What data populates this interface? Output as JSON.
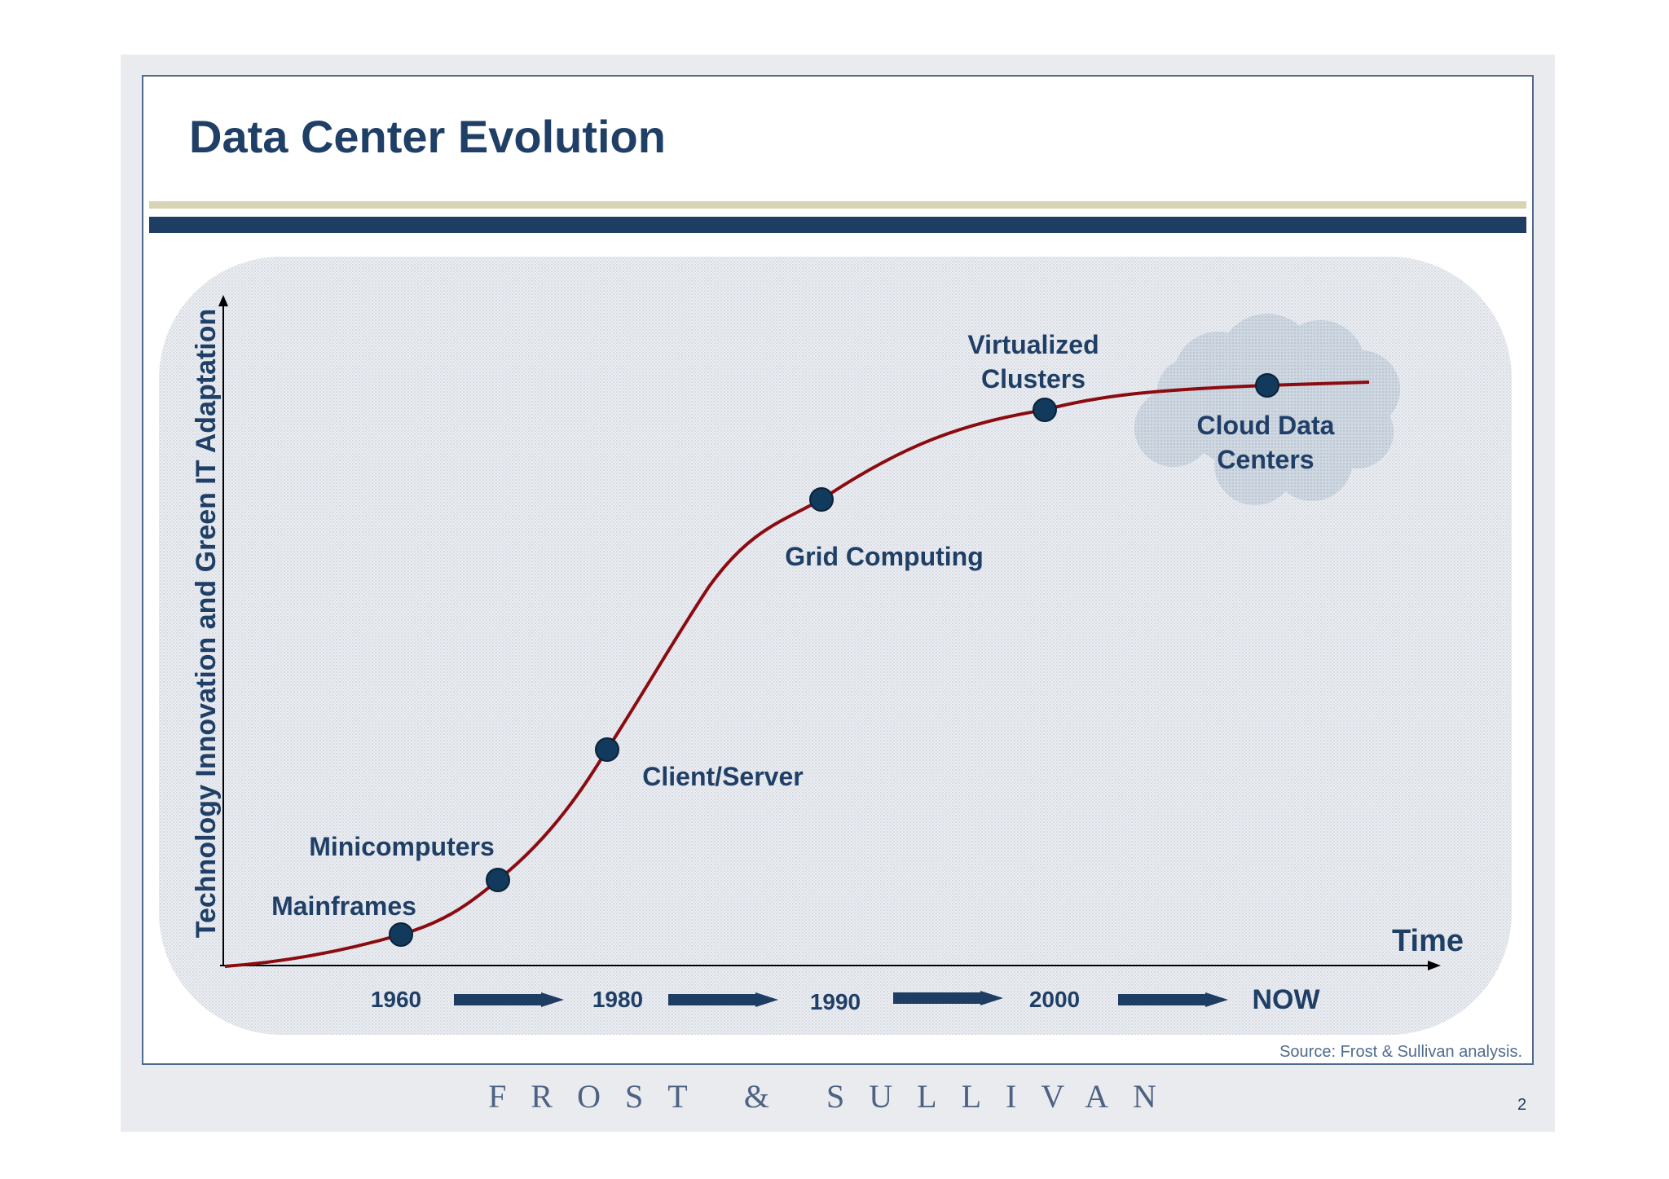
{
  "slide": {
    "title": "Data Center Evolution",
    "source": "Source: Frost & Sullivan analysis.",
    "footer_logo": "FROST & SULLIVAN",
    "page_number": "2"
  },
  "colors": {
    "title": "#1f3f66",
    "curve": "#8b0b10",
    "milestone": "#123a5c",
    "cloud": "#c9d3de",
    "arrow": "#1e3d63"
  },
  "axes": {
    "y_label": "Technology Innovation and Green IT Adaptation",
    "x_label": "Time"
  },
  "milestones": [
    {
      "label": "Mainframes"
    },
    {
      "label": "Minicomputers"
    },
    {
      "label": "Client/Server"
    },
    {
      "label": "Grid Computing"
    },
    {
      "label_lines": [
        "Virtualized",
        "Clusters"
      ]
    },
    {
      "label_lines": [
        "Cloud Data",
        "Centers"
      ]
    }
  ],
  "timeline": [
    "1960",
    "1980",
    "1990",
    "2000",
    "NOW"
  ]
}
